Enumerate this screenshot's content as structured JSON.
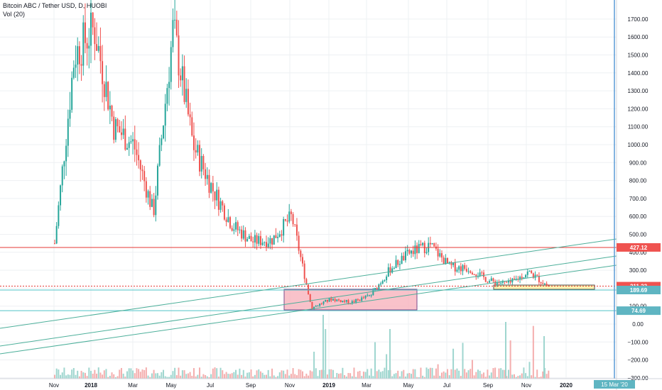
{
  "legend": {
    "symbol_line": "Bitcoin ABC / Tether USD, D, HUOBI",
    "indicator": "Vol (20)"
  },
  "colors": {
    "up": "#26a69a",
    "down": "#ef5350",
    "up_vol": "#9fd6cf",
    "down_vol": "#f4aeae",
    "trend_line": "#4caf9a",
    "h_line_red": "#e53935",
    "h_line_teal": "#4fc3c7",
    "vline": "#5b9bd5",
    "pink_box": "#f8b3bd",
    "yellow_box": "#fff3b0",
    "grid": "#eef0f3",
    "axis_text": "#131722",
    "badge_red": "#ef5350",
    "badge_teal": "#5fb5c2"
  },
  "chart_data": {
    "type": "candlestick",
    "y_ticks": [
      "1700.00",
      "1600.00",
      "1500.00",
      "1400.00",
      "1300.00",
      "1200.00",
      "1100.00",
      "1000.00",
      "900.00",
      "800.00",
      "700.00",
      "600.00",
      "500.00",
      "400.00",
      "300.00",
      "200.00",
      "100.00",
      "0.00",
      "−100.00",
      "−200.00",
      "−300.00"
    ],
    "x_ticks": [
      "Nov",
      "2018",
      "Mar",
      "May",
      "Jul",
      "Sep",
      "Nov",
      "2019",
      "Mar",
      "May",
      "Jul",
      "Sep",
      "Nov",
      "2020"
    ],
    "price_badges": [
      {
        "label": "427.12",
        "value": 427.12,
        "color": "red"
      },
      {
        "label": "211.23",
        "value": 211.23,
        "color": "red"
      },
      {
        "label": "189.69",
        "value": 189.69,
        "color": "teal"
      },
      {
        "label": "74.69",
        "value": 74.69,
        "color": "teal"
      }
    ],
    "date_badge": "15 Mar '20",
    "anchor_candles": [
      {
        "t": "Nov 2017",
        "v": 450
      },
      {
        "t": "Dec 2017",
        "v": 1500
      },
      {
        "t": "Jan 2018",
        "v": 1650
      },
      {
        "t": "Feb 2018",
        "v": 1100
      },
      {
        "t": "Mar 2018",
        "v": 1000
      },
      {
        "t": "Apr 2018",
        "v": 620
      },
      {
        "t": "May 2018",
        "v": 1650
      },
      {
        "t": "Jun 2018",
        "v": 1000
      },
      {
        "t": "Jul 2018",
        "v": 750
      },
      {
        "t": "Aug 2018",
        "v": 550
      },
      {
        "t": "Sep 2018",
        "v": 460
      },
      {
        "t": "Oct 2018",
        "v": 470
      },
      {
        "t": "Nov 2018",
        "v": 600
      },
      {
        "t": "Dec 2018",
        "v": 90
      },
      {
        "t": "Jan 2019",
        "v": 140
      },
      {
        "t": "Feb 2019",
        "v": 120
      },
      {
        "t": "Mar 2019",
        "v": 160
      },
      {
        "t": "Apr 2019",
        "v": 310
      },
      {
        "t": "May 2019",
        "v": 400
      },
      {
        "t": "Jun 2019",
        "v": 440
      },
      {
        "t": "Jul 2019",
        "v": 320
      },
      {
        "t": "Aug 2019",
        "v": 310
      },
      {
        "t": "Sep 2019",
        "v": 240
      },
      {
        "t": "Oct 2019",
        "v": 225
      },
      {
        "t": "Nov 2019",
        "v": 290
      },
      {
        "t": "Dec 2019",
        "v": 210
      }
    ]
  }
}
